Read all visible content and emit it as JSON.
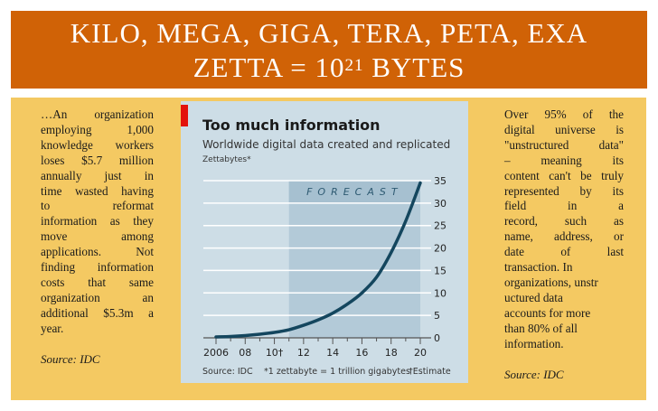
{
  "banner": {
    "line1": "KILO, MEGA, GIGA, TERA, PETA, EXA",
    "line2_prefix": "ZETTA = 10",
    "line2_sup": "21",
    "line2_suffix": " BYTES"
  },
  "left_text": {
    "lines": [
      "…An organization",
      "employing 1,000",
      "knowledge workers",
      "loses $5.7 million",
      "annually just in",
      "time wasted having",
      "to reformat",
      "information as they",
      "move among",
      "applications. Not",
      "finding information",
      "costs that same",
      "organization an",
      "additional $5.3m a",
      "year."
    ],
    "source": "Source: IDC"
  },
  "right_text": {
    "lines": [
      "Over 95% of the",
      "digital universe is",
      "\"unstructured data\"",
      "– meaning its",
      "content can't be truly",
      "represented by its",
      "field in a",
      "record, such as",
      "name, address, or",
      "date of last",
      "transaction. In",
      "organizations, unstr",
      "uctured data",
      "accounts for more",
      "than 80% of all",
      "information."
    ],
    "source": "Source: IDC"
  },
  "colors": {
    "banner": "#d06206",
    "panel": "#f4c962",
    "chart_bg": "#cddde6",
    "forecast": "#b3cad8",
    "line": "#14465e",
    "accent": "#e3120b"
  },
  "chart_data": {
    "type": "line",
    "title": "Too much information",
    "subtitle": "Worldwide digital data created and replicated",
    "ylabel": "Zettabytes*",
    "forecast_label": "FORECAST",
    "forecast_start": 2011,
    "x": [
      2006,
      2007,
      2008,
      2009,
      2010,
      2011,
      2012,
      2013,
      2014,
      2015,
      2016,
      2017,
      2018,
      2019,
      2020
    ],
    "values": [
      0.2,
      0.3,
      0.5,
      0.8,
      1.2,
      1.8,
      2.8,
      4.0,
      5.5,
      7.5,
      10.0,
      13.5,
      19.0,
      26.0,
      34.5
    ],
    "xlim": [
      2006,
      2020
    ],
    "ylim": [
      0,
      35
    ],
    "x_tick_labels": [
      "2006",
      "08",
      "10†",
      "12",
      "14",
      "16",
      "18",
      "20"
    ],
    "y_tick_labels": [
      "0",
      "5",
      "10",
      "15",
      "20",
      "25",
      "30",
      "35"
    ],
    "y_axis_position": "right",
    "grid": true,
    "footnotes": {
      "source": "Source: IDC",
      "note1": "*1 zettabyte = 1 trillion gigabytes",
      "note2": "†Estimate"
    }
  }
}
